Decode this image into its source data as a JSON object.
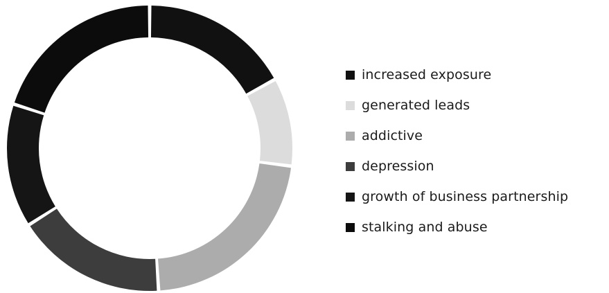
{
  "chart_data": {
    "type": "pie",
    "donut": true,
    "title": "",
    "categories": [
      "increased exposure",
      "generated leads",
      "addictive",
      "depression",
      "growth of business partnership",
      "stalking and abuse"
    ],
    "values": [
      17,
      10,
      22,
      17,
      14,
      20
    ],
    "unit": "",
    "colors": [
      "#111111",
      "#dcdcdc",
      "#acacac",
      "#3d3d3d",
      "#151515",
      "#0c0c0c"
    ],
    "start": "top",
    "direction": "clockwise",
    "legend": "right"
  }
}
